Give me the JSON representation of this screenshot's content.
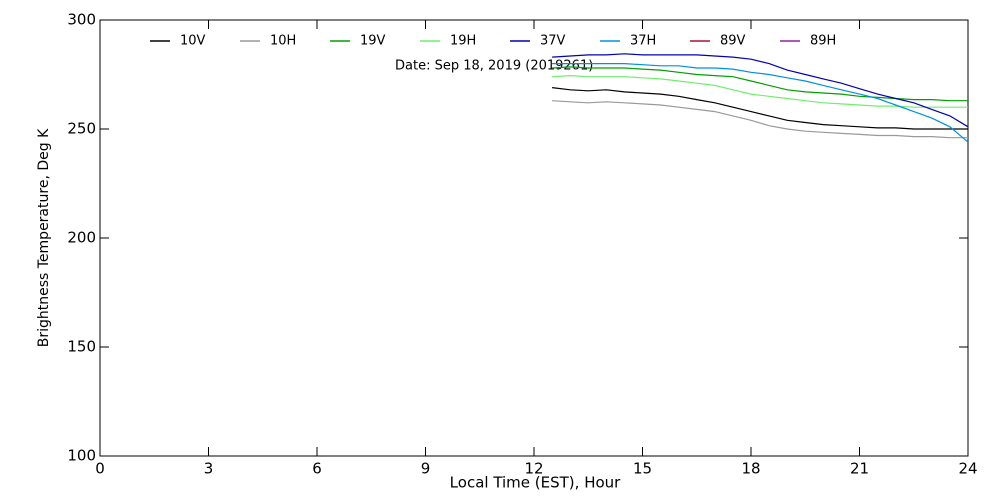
{
  "chart_data": {
    "type": "line",
    "xlabel": "Local Time (EST), Hour",
    "ylabel": "Brightness Temperature, Deg K",
    "annotation": "Date: Sep 18, 2019 (2019261)",
    "x": [
      12.5,
      13,
      13.5,
      14,
      14.5,
      15,
      15.5,
      16,
      16.5,
      17,
      17.5,
      18,
      18.5,
      19,
      19.5,
      20,
      20.5,
      21,
      21.5,
      22,
      22.5,
      23,
      23.5,
      24
    ],
    "series": [
      {
        "name": "10V",
        "color": "#000000",
        "values": [
          269,
          268,
          267.5,
          268,
          267,
          266.5,
          266,
          265,
          263.5,
          262,
          260,
          258,
          256,
          254,
          253,
          252,
          251.5,
          251,
          250.5,
          250.5,
          250,
          250,
          250,
          250
        ]
      },
      {
        "name": "10H",
        "color": "#999999",
        "values": [
          263,
          262.5,
          262,
          262.5,
          262,
          261.5,
          261,
          260,
          259,
          258,
          256,
          254,
          251.5,
          250,
          249,
          248.5,
          248,
          247.5,
          247,
          247,
          246.5,
          246.5,
          246,
          246
        ]
      },
      {
        "name": "19V",
        "color": "#00a000",
        "values": [
          278,
          278.5,
          278,
          278,
          278,
          277.5,
          277,
          276,
          275,
          274.5,
          274,
          272,
          270,
          268,
          267,
          266.5,
          266,
          265,
          264.5,
          264,
          263.5,
          263.5,
          263,
          263
        ]
      },
      {
        "name": "19H",
        "color": "#70ee70",
        "values": [
          274,
          274.5,
          274,
          274,
          274,
          273.5,
          273,
          272,
          271,
          270,
          268,
          266,
          265,
          264,
          263,
          262,
          261.5,
          261,
          260.5,
          260.5,
          260,
          260,
          260,
          260
        ]
      },
      {
        "name": "37V",
        "color": "#0000b0",
        "values": [
          283,
          283.5,
          284,
          284,
          284.5,
          284,
          284,
          284,
          284,
          283.5,
          283,
          282,
          280,
          277,
          275,
          273,
          271,
          268.5,
          266,
          264,
          262,
          259,
          256,
          251
        ]
      },
      {
        "name": "37H",
        "color": "#0090e0",
        "values": [
          280,
          280,
          280,
          280,
          280,
          279.5,
          279,
          279,
          278,
          278,
          277.5,
          276,
          275,
          273.5,
          272,
          270,
          268,
          266,
          264,
          261,
          258,
          255,
          251,
          244
        ]
      },
      {
        "name": "89V",
        "color": "#b01030",
        "values": [
          null,
          null,
          null,
          null,
          null,
          null,
          null,
          null,
          null,
          null,
          null,
          null,
          null,
          null,
          null,
          null,
          null,
          null,
          null,
          null,
          null,
          null,
          null,
          null
        ]
      },
      {
        "name": "89H",
        "color": "#9020a0",
        "values": [
          null,
          null,
          null,
          null,
          null,
          null,
          null,
          null,
          null,
          null,
          null,
          null,
          null,
          null,
          null,
          null,
          null,
          null,
          null,
          null,
          null,
          null,
          null,
          null
        ]
      }
    ],
    "xlim": [
      0,
      24
    ],
    "xticks": [
      0,
      3,
      6,
      9,
      12,
      15,
      18,
      21,
      24
    ],
    "ylim": [
      100,
      300
    ],
    "yticks": [
      100,
      150,
      200,
      250,
      300
    ]
  }
}
